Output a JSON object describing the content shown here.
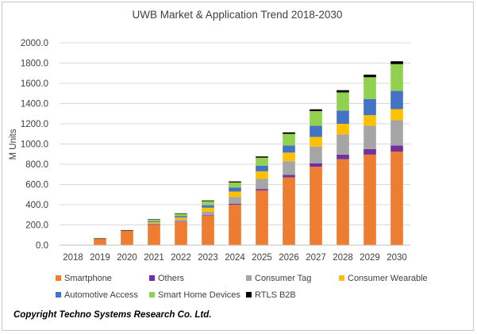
{
  "chart_data": {
    "type": "bar",
    "stacked": true,
    "title": "UWB Market & Application Trend 2018-2030",
    "xlabel": "",
    "ylabel": "M Units",
    "ylim": [
      0,
      2000
    ],
    "y_ticks": [
      0,
      200,
      400,
      600,
      800,
      1000,
      1200,
      1400,
      1600,
      1800,
      2000
    ],
    "y_tick_labels": [
      "0.0",
      "200.0",
      "400.0",
      "600.0",
      "800.0",
      "1000.0",
      "1200.0",
      "1400.0",
      "1600.0",
      "1800.0",
      "2000.0"
    ],
    "grid": true,
    "legend_position": "bottom",
    "categories": [
      "2018",
      "2019",
      "2020",
      "2021",
      "2022",
      "2023",
      "2024",
      "2025",
      "2026",
      "2027",
      "2028",
      "2029",
      "2030"
    ],
    "series": [
      {
        "name": "Smartphone",
        "color": "#ed7d31",
        "values": [
          3,
          65,
          145,
          205,
          230,
          290,
          400,
          540,
          670,
          775,
          850,
          895,
          925
        ]
      },
      {
        "name": "Others",
        "color": "#7030a0",
        "values": [
          0,
          0,
          0,
          2,
          3,
          5,
          10,
          15,
          25,
          35,
          45,
          55,
          60
        ]
      },
      {
        "name": "Consumer Tag",
        "color": "#a5a5a5",
        "values": [
          0,
          0,
          0,
          10,
          18,
          35,
          65,
          100,
          135,
          165,
          200,
          230,
          250
        ]
      },
      {
        "name": "Consumer Wearable",
        "color": "#ffc000",
        "values": [
          0,
          0,
          0,
          10,
          22,
          40,
          55,
          75,
          85,
          95,
          105,
          105,
          110
        ]
      },
      {
        "name": "Automotive Access",
        "color": "#4472c4",
        "values": [
          0,
          0,
          0,
          10,
          15,
          25,
          40,
          55,
          70,
          110,
          130,
          160,
          180
        ]
      },
      {
        "name": "Smart Home Devices",
        "color": "#92d050",
        "values": [
          0,
          0,
          0,
          15,
          22,
          40,
          50,
          80,
          115,
          145,
          180,
          215,
          265
        ]
      },
      {
        "name": "RTLS B2B",
        "color": "#000000",
        "values": [
          1,
          2,
          3,
          4,
          5,
          7,
          10,
          12,
          15,
          18,
          22,
          25,
          28
        ]
      }
    ]
  },
  "copyright": "Copyright Techno Systems Research Co. Ltd."
}
